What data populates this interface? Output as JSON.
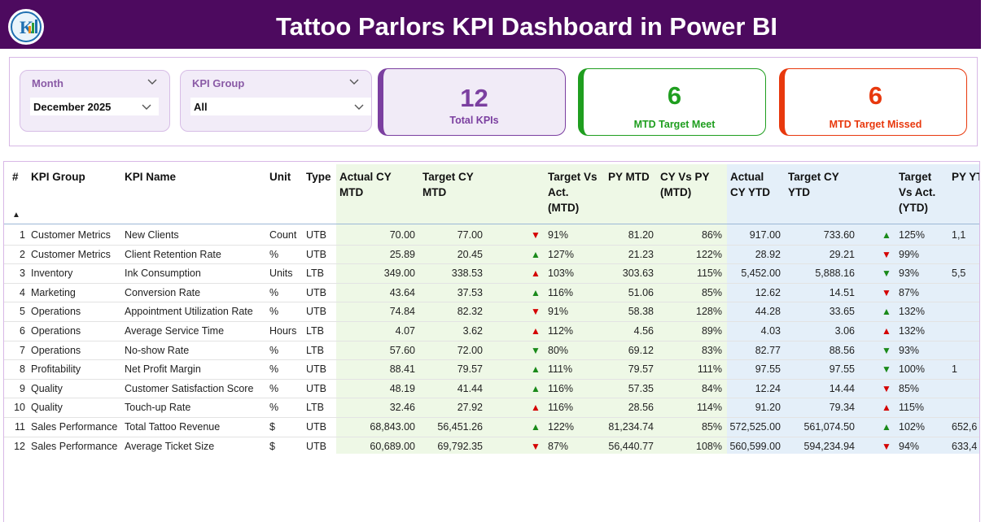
{
  "header": {
    "title": "Tattoo Parlors KPI Dashboard in Power BI"
  },
  "slicers": [
    {
      "label": "Month",
      "value": "December 2025"
    },
    {
      "label": "KPI Group",
      "value": "All"
    }
  ],
  "cards": [
    {
      "value": "12",
      "label": "Total KPIs",
      "color": "#7b3fa0"
    },
    {
      "value": "6",
      "label": "MTD Target Meet",
      "color": "#1f9e1f"
    },
    {
      "value": "6",
      "label": "MTD Target Missed",
      "color": "#e8380d"
    }
  ],
  "table": {
    "sort_icon": "▲",
    "columns": [
      "#",
      "KPI Group",
      "KPI Name",
      "Unit",
      "Type",
      "Actual CY MTD",
      "Target CY MTD",
      "Target Vs Act. (MTD)",
      "PY MTD",
      "CY Vs PY (MTD)",
      "Actual CY YTD",
      "Target CY YTD",
      "Target Vs Act. (YTD)",
      "PY YTD"
    ],
    "rows": [
      [
        "1",
        "Customer Metrics",
        "New Clients",
        "Count",
        "UTB",
        "70.00",
        "77.00",
        {
          "icon": "▼",
          "color": "#d40000"
        },
        "91%",
        "81.20",
        "86%",
        "917.00",
        "733.60",
        {
          "icon": "▲",
          "color": "#1a8a1a"
        },
        "125%",
        "1,1"
      ],
      [
        "2",
        "Customer Metrics",
        "Client Retention Rate",
        "%",
        "UTB",
        "25.89",
        "20.45",
        {
          "icon": "▲",
          "color": "#1a8a1a"
        },
        "127%",
        "21.23",
        "122%",
        "28.92",
        "29.21",
        {
          "icon": "▼",
          "color": "#d40000"
        },
        "99%",
        null
      ],
      [
        "3",
        "Inventory",
        "Ink Consumption",
        "Units",
        "LTB",
        "349.00",
        "338.53",
        {
          "icon": "▲",
          "color": "#d40000"
        },
        "103%",
        "303.63",
        "115%",
        "5,452.00",
        "5,888.16",
        {
          "icon": "▼",
          "color": "#1a8a1a"
        },
        "93%",
        "5,5"
      ],
      [
        "4",
        "Marketing",
        "Conversion Rate",
        "%",
        "UTB",
        "43.64",
        "37.53",
        {
          "icon": "▲",
          "color": "#1a8a1a"
        },
        "116%",
        "51.06",
        "85%",
        "12.62",
        "14.51",
        {
          "icon": "▼",
          "color": "#d40000"
        },
        "87%",
        null
      ],
      [
        "5",
        "Operations",
        "Appointment Utilization Rate",
        "%",
        "UTB",
        "74.84",
        "82.32",
        {
          "icon": "▼",
          "color": "#d40000"
        },
        "91%",
        "58.38",
        "128%",
        "44.28",
        "33.65",
        {
          "icon": "▲",
          "color": "#1a8a1a"
        },
        "132%",
        null
      ],
      [
        "6",
        "Operations",
        "Average Service Time",
        "Hours",
        "LTB",
        "4.07",
        "3.62",
        {
          "icon": "▲",
          "color": "#d40000"
        },
        "112%",
        "4.56",
        "89%",
        "4.03",
        "3.06",
        {
          "icon": "▲",
          "color": "#d40000"
        },
        "132%",
        null
      ],
      [
        "7",
        "Operations",
        "No-show Rate",
        "%",
        "LTB",
        "57.60",
        "72.00",
        {
          "icon": "▼",
          "color": "#1a8a1a"
        },
        "80%",
        "69.12",
        "83%",
        "82.77",
        "88.56",
        {
          "icon": "▼",
          "color": "#1a8a1a"
        },
        "93%",
        null
      ],
      [
        "8",
        "Profitability",
        "Net Profit Margin",
        "%",
        "UTB",
        "88.41",
        "79.57",
        {
          "icon": "▲",
          "color": "#1a8a1a"
        },
        "111%",
        "79.57",
        "111%",
        "97.55",
        "97.55",
        {
          "icon": "▼",
          "color": "#1a8a1a"
        },
        "100%",
        "1"
      ],
      [
        "9",
        "Quality",
        "Customer Satisfaction Score",
        "%",
        "UTB",
        "48.19",
        "41.44",
        {
          "icon": "▲",
          "color": "#1a8a1a"
        },
        "116%",
        "57.35",
        "84%",
        "12.24",
        "14.44",
        {
          "icon": "▼",
          "color": "#d40000"
        },
        "85%",
        null
      ],
      [
        "10",
        "Quality",
        "Touch-up Rate",
        "%",
        "LTB",
        "32.46",
        "27.92",
        {
          "icon": "▲",
          "color": "#d40000"
        },
        "116%",
        "28.56",
        "114%",
        "91.20",
        "79.34",
        {
          "icon": "▲",
          "color": "#d40000"
        },
        "115%",
        null
      ],
      [
        "11",
        "Sales Performance",
        "Total Tattoo Revenue",
        "$",
        "UTB",
        "68,843.00",
        "56,451.26",
        {
          "icon": "▲",
          "color": "#1a8a1a"
        },
        "122%",
        "81,234.74",
        "85%",
        "572,525.00",
        "561,074.50",
        {
          "icon": "▲",
          "color": "#1a8a1a"
        },
        "102%",
        "652,6"
      ],
      [
        "12",
        "Sales Performance",
        "Average Ticket Size",
        "$",
        "UTB",
        "60,689.00",
        "69,792.35",
        {
          "icon": "▼",
          "color": "#d40000"
        },
        "87%",
        "56,440.77",
        "108%",
        "560,599.00",
        "594,234.94",
        {
          "icon": "▼",
          "color": "#d40000"
        },
        "94%",
        "633,4"
      ]
    ]
  }
}
